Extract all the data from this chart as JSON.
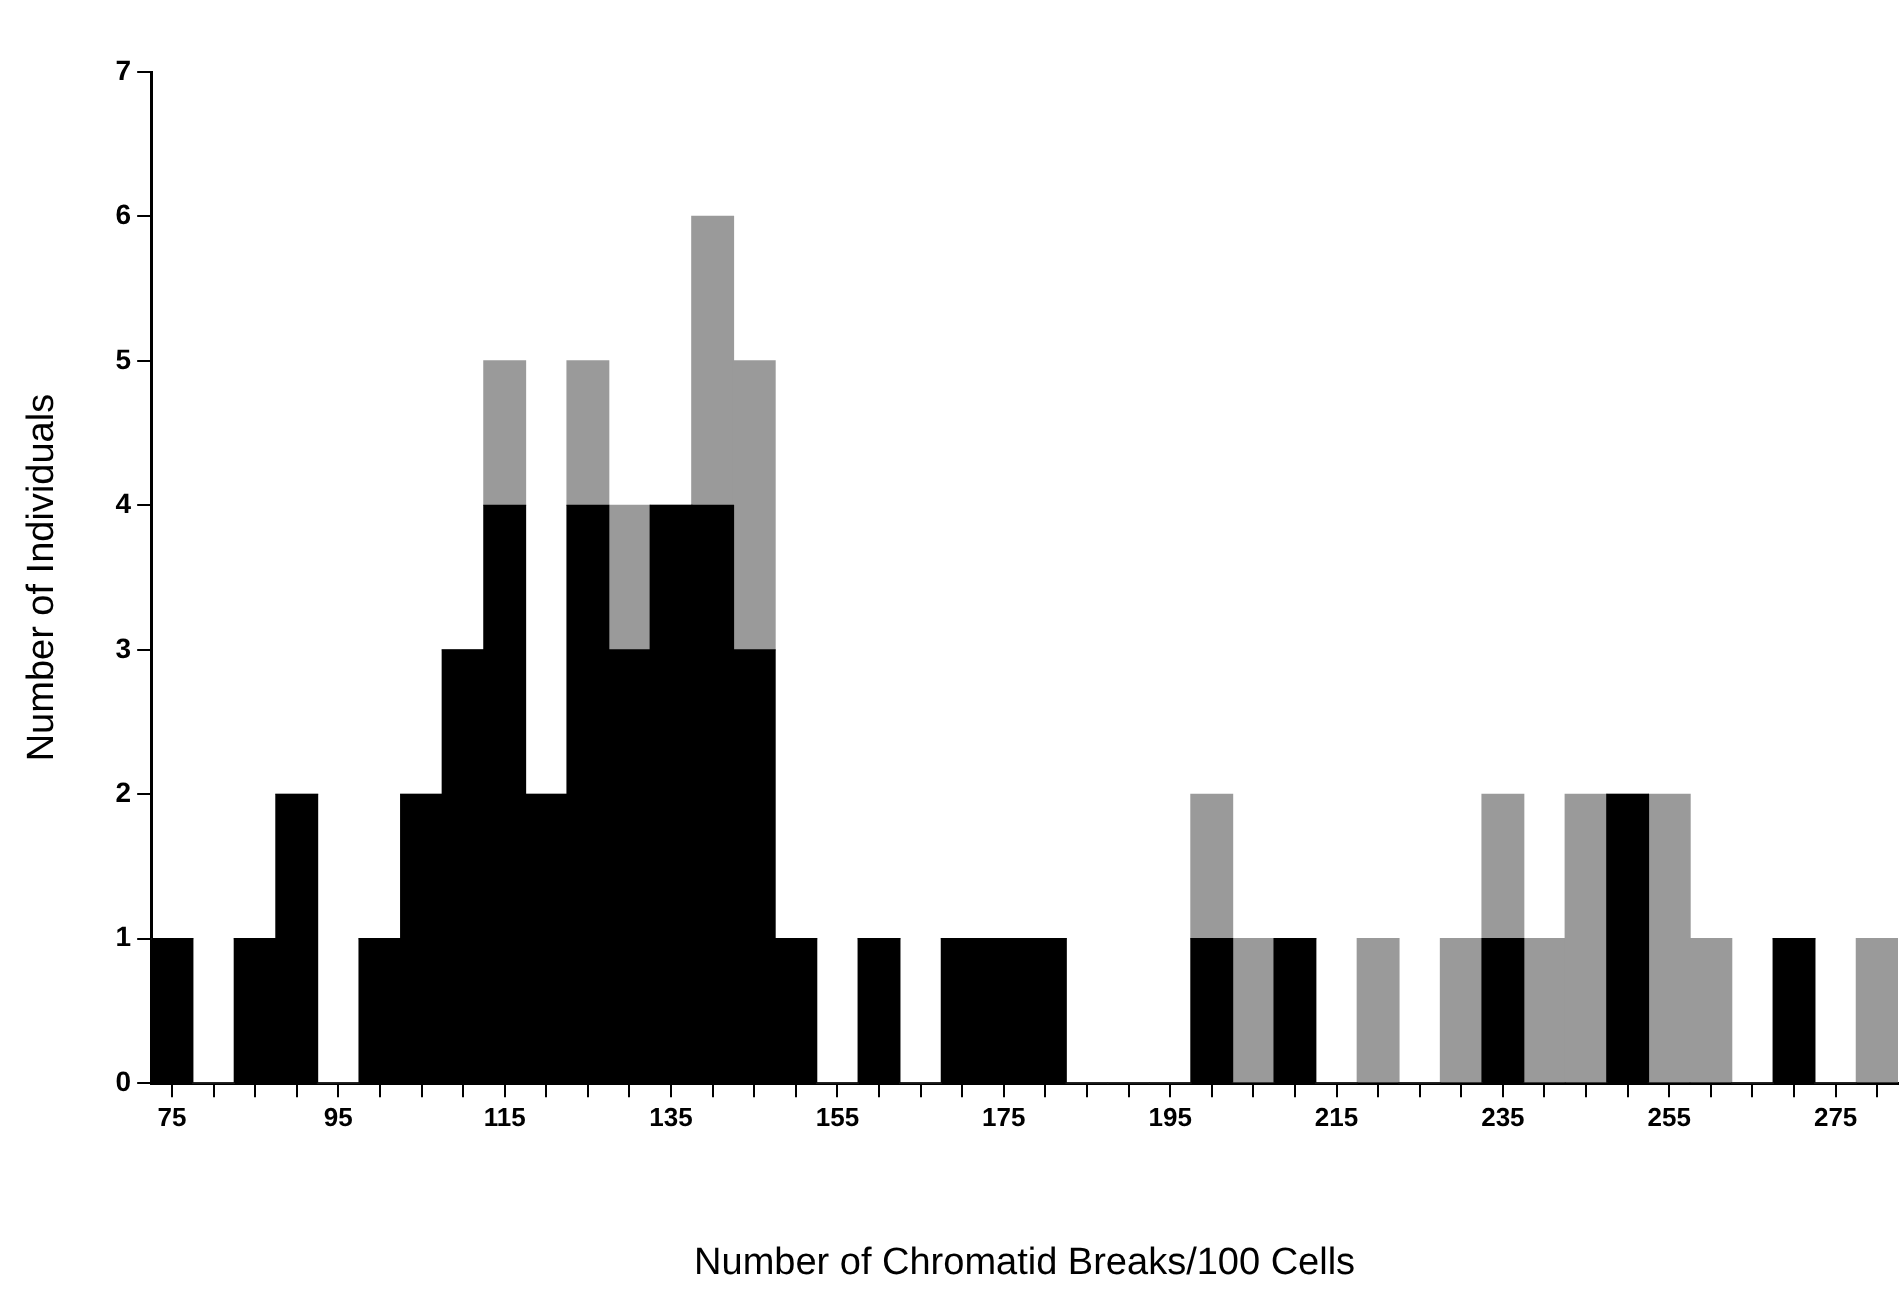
{
  "chart_data": {
    "type": "bar",
    "xlabel": "Number of Chromatid Breaks/100 Cells",
    "ylabel": "Number of Individuals",
    "x": [
      75,
      80,
      85,
      90,
      95,
      100,
      105,
      110,
      115,
      120,
      125,
      130,
      135,
      140,
      145,
      150,
      155,
      160,
      165,
      170,
      175,
      180,
      185,
      190,
      195,
      200,
      205,
      210,
      215,
      220,
      225,
      230,
      235,
      240,
      245,
      250,
      255,
      260,
      265,
      270,
      275,
      280
    ],
    "stacked": true,
    "series": [
      {
        "color": "#000000",
        "values": [
          1,
          0,
          1,
          2,
          0,
          1,
          2,
          3,
          4,
          2,
          4,
          3,
          4,
          4,
          3,
          1,
          0,
          1,
          0,
          1,
          1,
          1,
          0,
          0,
          0,
          1,
          0,
          1,
          0,
          0,
          0,
          0,
          1,
          0,
          0,
          2,
          0,
          0,
          0,
          1,
          0,
          0
        ]
      },
      {
        "color": "#9a9a9a",
        "values": [
          0,
          0,
          0,
          0,
          0,
          0,
          0,
          0,
          1,
          0,
          1,
          1,
          0,
          2,
          2,
          0,
          0,
          0,
          0,
          0,
          0,
          0,
          0,
          0,
          0,
          1,
          1,
          0,
          0,
          1,
          0,
          1,
          1,
          1,
          2,
          0,
          2,
          1,
          0,
          0,
          0,
          1
        ]
      }
    ],
    "xlim": [
      72.5,
      282.5
    ],
    "xticks": [
      75,
      {
        "value": 80,
        "label": null
      },
      {
        "value": 85,
        "label": null
      },
      {
        "value": 90,
        "label": null
      },
      95,
      {
        "value": 100,
        "label": null
      },
      {
        "value": 105,
        "label": null
      },
      {
        "value": 110,
        "label": null
      },
      115,
      {
        "value": 120,
        "label": null
      },
      {
        "value": 125,
        "label": null
      },
      {
        "value": 130,
        "label": null
      },
      135,
      {
        "value": 140,
        "label": null
      },
      {
        "value": 145,
        "label": null
      },
      {
        "value": 150,
        "label": null
      },
      155,
      {
        "value": 160,
        "label": null
      },
      {
        "value": 165,
        "label": null
      },
      {
        "value": 170,
        "label": null
      },
      175,
      {
        "value": 180,
        "label": null
      },
      {
        "value": 185,
        "label": null
      },
      {
        "value": 190,
        "label": null
      },
      195,
      {
        "value": 200,
        "label": null
      },
      {
        "value": 205,
        "label": null
      },
      {
        "value": 210,
        "label": null
      },
      215,
      {
        "value": 220,
        "label": null
      },
      {
        "value": 225,
        "label": null
      },
      {
        "value": 230,
        "label": null
      },
      235,
      {
        "value": 240,
        "label": null
      },
      {
        "value": 245,
        "label": null
      },
      {
        "value": 250,
        "label": null
      },
      255,
      {
        "value": 260,
        "label": null
      },
      {
        "value": 265,
        "label": null
      },
      {
        "value": 270,
        "label": null
      },
      275,
      {
        "value": 280,
        "label": null
      }
    ],
    "ylim": [
      0,
      7
    ],
    "yticks": [
      0,
      1,
      2,
      3,
      4,
      5,
      6,
      7
    ],
    "grid": false,
    "legend": false
  }
}
